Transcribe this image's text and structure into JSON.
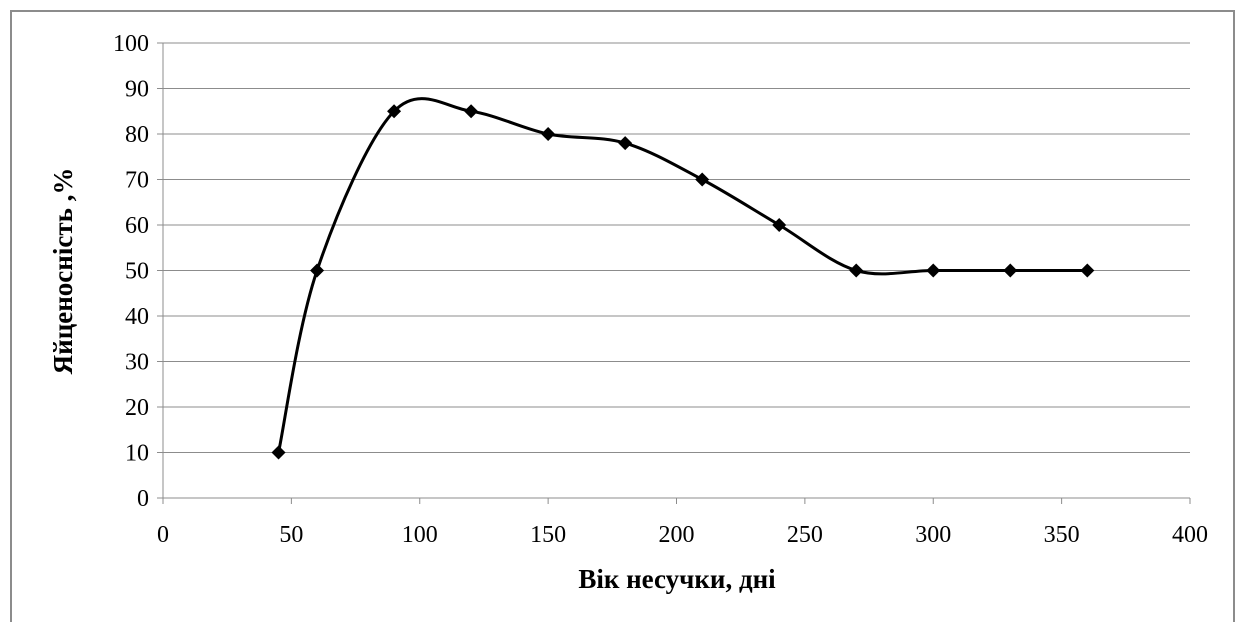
{
  "chart_data": {
    "type": "line",
    "title": "",
    "xlabel": "Вік несучки, дні",
    "ylabel": "Яйценосність ,%",
    "xlim": [
      0,
      400
    ],
    "ylim": [
      0,
      100
    ],
    "x_ticks": [
      0,
      50,
      100,
      150,
      200,
      250,
      300,
      350,
      400
    ],
    "y_ticks": [
      0,
      10,
      20,
      30,
      40,
      50,
      60,
      70,
      80,
      90,
      100
    ],
    "grid": "horizontal",
    "smooth": true,
    "series": [
      {
        "marker": "diamond",
        "color": "#000000",
        "x": [
          45,
          60,
          90,
          120,
          150,
          180,
          210,
          240,
          270,
          300,
          330,
          360
        ],
        "y": [
          10,
          50,
          85,
          85,
          80,
          78,
          70,
          60,
          50,
          50,
          50,
          50
        ]
      }
    ]
  }
}
